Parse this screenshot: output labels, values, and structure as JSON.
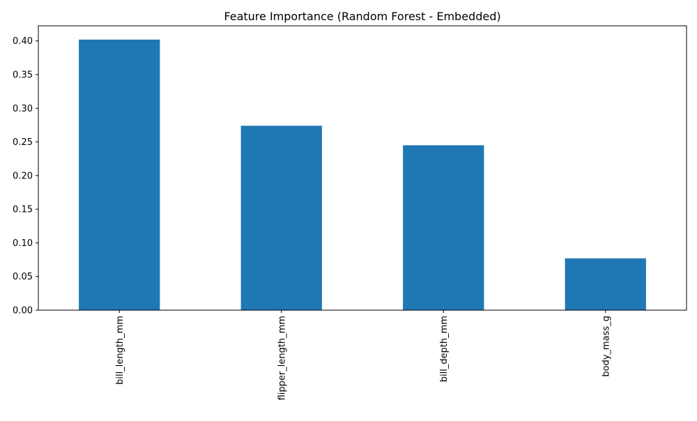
{
  "chart_data": {
    "type": "bar",
    "title": "Feature Importance (Random Forest - Embedded)",
    "xlabel": "",
    "ylabel": "",
    "categories": [
      "bill_length_mm",
      "flipper_length_mm",
      "bill_depth_mm",
      "body_mass_g"
    ],
    "values": [
      0.402,
      0.274,
      0.245,
      0.077
    ],
    "ylim": [
      0,
      0.4225
    ],
    "yticks": [
      0.0,
      0.05,
      0.1,
      0.15,
      0.2,
      0.25,
      0.3,
      0.35,
      0.4
    ],
    "ytick_labels": [
      "0.00",
      "0.05",
      "0.10",
      "0.15",
      "0.20",
      "0.25",
      "0.30",
      "0.35",
      "0.40"
    ],
    "grid": false,
    "legend": "none",
    "bar_color": "#1f77b4"
  }
}
